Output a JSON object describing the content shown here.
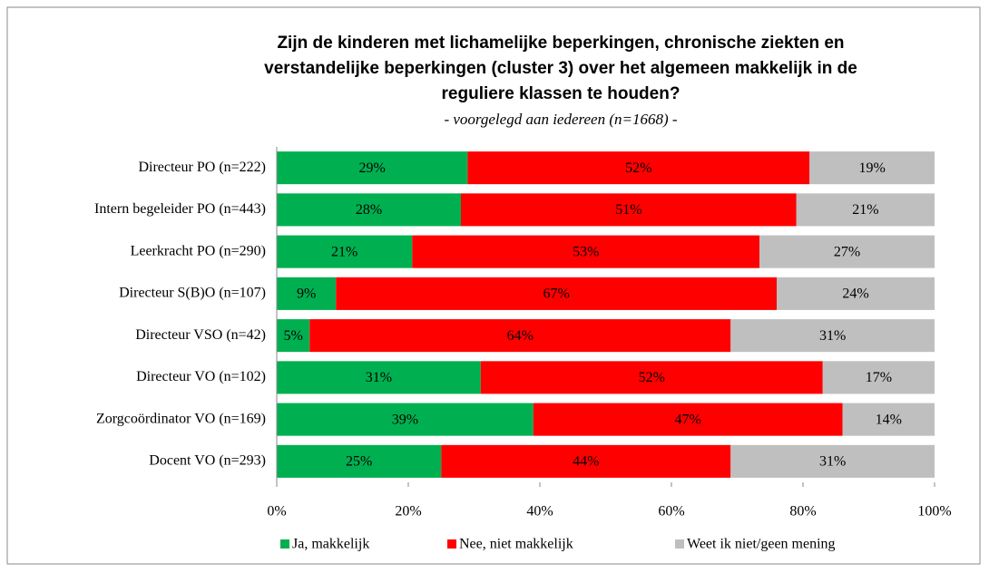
{
  "chart_data": {
    "type": "stacked-bar-horizontal",
    "title": [
      "Zijn de kinderen met lichamelijke beperkingen, chronische ziekten en",
      "verstandelijke beperkingen (cluster 3) over het algemeen makkelijk in de",
      "reguliere klassen te houden?"
    ],
    "subtitle": "- voorgelegd aan iedereen (n=1668) -",
    "categories": [
      "Directeur PO (n=222)",
      "Intern begeleider PO (n=443)",
      "Leerkracht PO (n=290)",
      "Directeur S(B)O (n=107)",
      "Directeur VSO (n=42)",
      "Directeur VO (n=102)",
      "Zorgcoördinator VO (n=169)",
      "Docent VO (n=293)"
    ],
    "series": [
      {
        "name": "Ja, makkelijk",
        "color": "#00b050",
        "values": [
          29,
          28,
          20.6,
          9,
          5,
          31,
          39,
          25
        ],
        "value_labels": [
          "29%",
          "28%",
          "21%",
          "9%",
          "5%",
          "31%",
          "39%",
          "25%"
        ]
      },
      {
        "name": "Nee, niet makkelijk",
        "color": "#ff0000",
        "values": [
          52,
          51,
          52.8,
          67,
          64,
          52,
          47,
          44
        ],
        "value_labels": [
          "52%",
          "51%",
          "53%",
          "67%",
          "64%",
          "52%",
          "47%",
          "44%"
        ]
      },
      {
        "name": "Weet ik niet/geen mening",
        "color": "#bfbfbf",
        "values": [
          19,
          21,
          26.6,
          24,
          31,
          17,
          14,
          31
        ],
        "value_labels": [
          "19%",
          "21%",
          "27%",
          "24%",
          "31%",
          "17%",
          "14%",
          "31%"
        ]
      }
    ],
    "xlim": [
      0,
      100
    ],
    "xticks": [
      {
        "value": 0,
        "label": "0%"
      },
      {
        "value": 20,
        "label": "20%"
      },
      {
        "value": 40,
        "label": "40%"
      },
      {
        "value": 60,
        "label": "60%"
      },
      {
        "value": 80,
        "label": "80%"
      },
      {
        "value": 100,
        "label": "100%"
      }
    ],
    "grid": false,
    "legend": "bottom"
  }
}
